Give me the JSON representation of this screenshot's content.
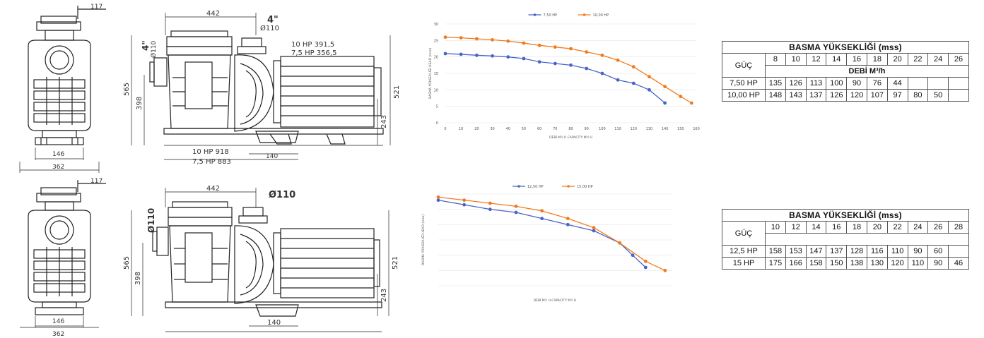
{
  "pump1": {
    "front_dims": {
      "top_offset": "117",
      "base_inner": "146",
      "base_outer": "362"
    },
    "side_dims": {
      "length_top": "442",
      "port_size": "4\"",
      "port_dia": "Ø110",
      "left_port_size": "4\"",
      "left_port_dia": "Ø110",
      "height_total": "565",
      "height_mid": "398",
      "height_right": "521",
      "height_base": "243",
      "motor_10hp": "10 HP 391,5",
      "motor_75hp": "7,5 HP 356,5",
      "len_10hp": "10 HP 918",
      "len_75hp": "7,5 HP 883",
      "foot_spacing": "140"
    }
  },
  "pump2": {
    "front_dims": {
      "top_offset": "117",
      "base_inner": "146",
      "base_outer": "362"
    },
    "side_dims": {
      "length_top": "442",
      "port_dia": "Ø110",
      "left_port_dia": "Ø110",
      "height_total": "565",
      "height_mid": "398",
      "height_right": "521",
      "height_base": "243",
      "foot_spacing": "140"
    }
  },
  "colors": {
    "series_a": "#4a64c8",
    "series_b": "#f07a1e"
  },
  "chart_data": [
    {
      "type": "line",
      "legend": [
        "7,50 HP",
        "10,00 HP"
      ],
      "ylabel": "BASMA YÜKSEKLİĞİ HEAD (mss)",
      "xlabel": "DEBİ M³/ H CAPACITY M³/ H",
      "xlim": [
        0,
        160
      ],
      "ylim": [
        0,
        30
      ],
      "xticks": [
        "0",
        "10",
        "20",
        "30",
        "40",
        "50",
        "60",
        "70",
        "80",
        "90",
        "100",
        "110",
        "120",
        "130",
        "140",
        "150",
        "160"
      ],
      "yticks": [
        "0",
        "5",
        "10",
        "15",
        "20",
        "25",
        "30"
      ],
      "series": [
        {
          "name": "7,50 HP",
          "x": [
            0,
            10,
            20,
            30,
            40,
            50,
            60,
            70,
            80,
            90,
            100,
            110,
            120,
            130,
            140
          ],
          "y": [
            21,
            20.8,
            20.5,
            20.3,
            20,
            19.5,
            18.5,
            18,
            17.5,
            16.5,
            15,
            13,
            12,
            10,
            6
          ]
        },
        {
          "name": "10,00 HP",
          "x": [
            0,
            10,
            20,
            30,
            40,
            50,
            60,
            70,
            80,
            90,
            100,
            110,
            120,
            130,
            140,
            150,
            157
          ],
          "y": [
            26,
            25.8,
            25.5,
            25.2,
            24.8,
            24.2,
            23.5,
            23,
            22.5,
            21.5,
            20.5,
            19,
            17,
            14,
            11,
            8,
            6
          ]
        }
      ]
    },
    {
      "type": "line",
      "legend": [
        "12,50 HP",
        "15,00 HP"
      ],
      "ylabel": "BASMA YÜKSEKLİĞİ HEAD (mss)",
      "xlabel": "DEBİ M³/ H CAPACITY M³/ H",
      "xlim": [
        0,
        180
      ],
      "ylim": [
        0,
        30
      ],
      "series": [
        {
          "name": "12,50 HP",
          "x": [
            0,
            20,
            40,
            60,
            80,
            100,
            120,
            140,
            150,
            160
          ],
          "y": [
            28,
            26.5,
            25,
            24,
            22,
            20,
            18,
            14,
            10,
            6
          ]
        },
        {
          "name": "15,00 HP",
          "x": [
            0,
            20,
            40,
            60,
            80,
            100,
            120,
            140,
            160,
            175
          ],
          "y": [
            29,
            28,
            27,
            26,
            24.5,
            22,
            19,
            14,
            8,
            5
          ]
        }
      ]
    }
  ],
  "table1": {
    "title": "BASMA YÜKSEKLİĞİ (mss)",
    "power_label": "GÜÇ",
    "subheader": "DEBİ M³/h",
    "heads": [
      "8",
      "10",
      "12",
      "14",
      "16",
      "18",
      "20",
      "22",
      "24",
      "26"
    ],
    "rows": [
      {
        "power": "7,50 HP",
        "values": [
          "135",
          "126",
          "113",
          "100",
          "90",
          "76",
          "44",
          "",
          "",
          ""
        ]
      },
      {
        "power": "10,00 HP",
        "values": [
          "148",
          "143",
          "137",
          "126",
          "120",
          "107",
          "97",
          "80",
          "50",
          ""
        ]
      }
    ]
  },
  "table2": {
    "title": "BASMA YÜKSEKLİĞİ (mss)",
    "power_label": "GÜÇ",
    "heads": [
      "10",
      "12",
      "14",
      "16",
      "18",
      "20",
      "22",
      "24",
      "26",
      "28"
    ],
    "rows": [
      {
        "power": "12,5 HP",
        "values": [
          "158",
          "153",
          "147",
          "137",
          "128",
          "116",
          "110",
          "90",
          "60",
          ""
        ]
      },
      {
        "power": "15 HP",
        "values": [
          "175",
          "166",
          "158",
          "150",
          "138",
          "130",
          "120",
          "110",
          "90",
          "46"
        ]
      }
    ]
  }
}
